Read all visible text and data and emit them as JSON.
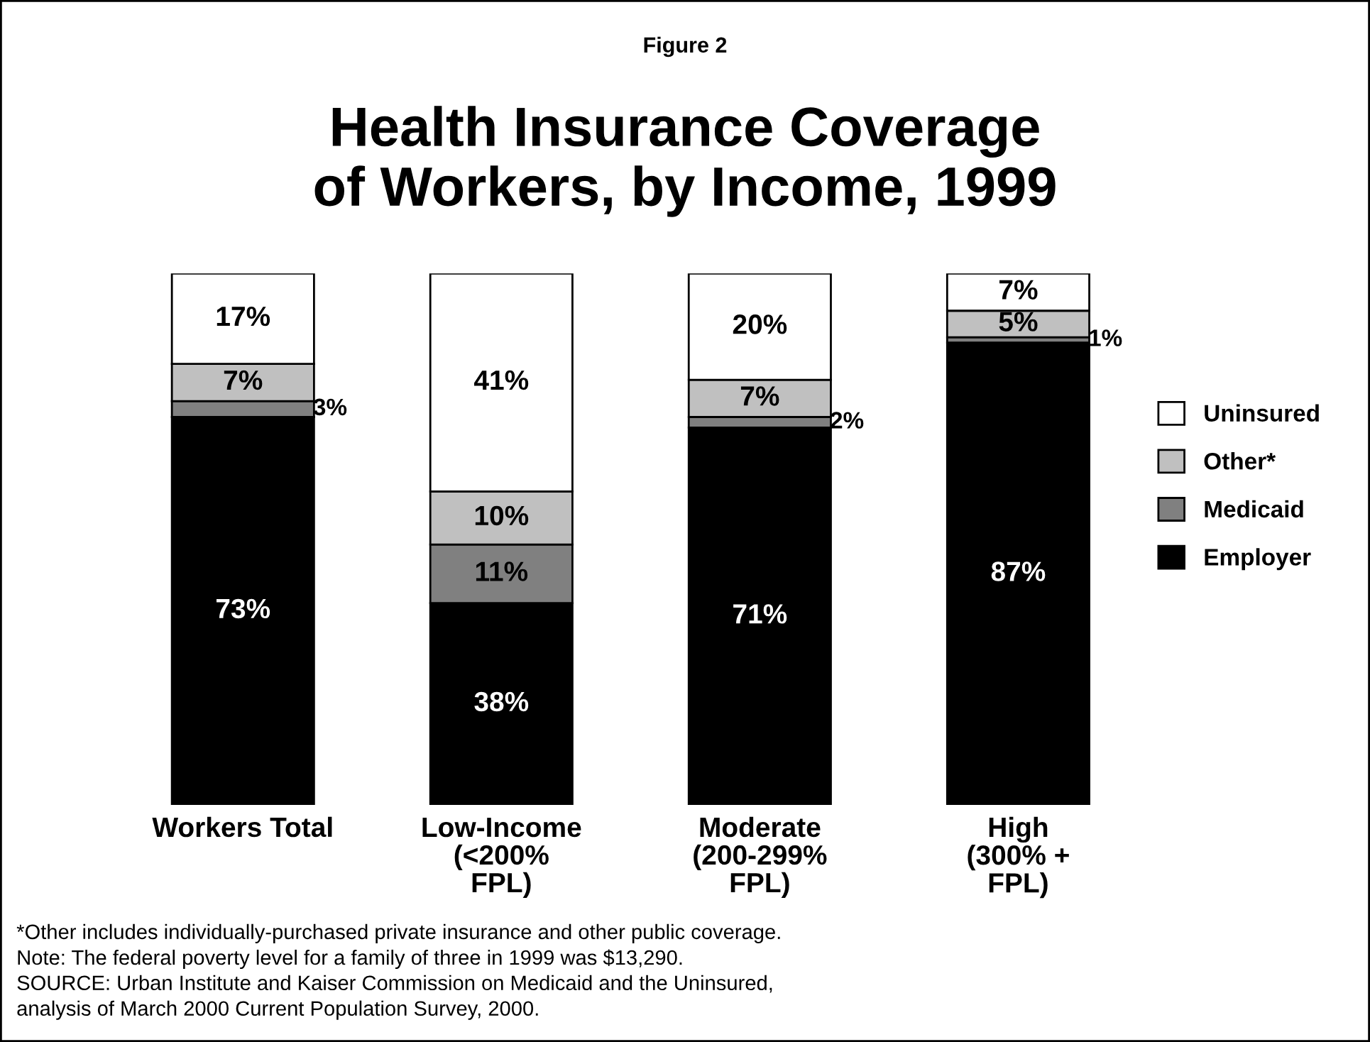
{
  "chart_data": {
    "type": "bar",
    "stacked": true,
    "subtitle": "Figure 2",
    "title": "Health Insurance Coverage\nof Workers, by Income, 1999",
    "categories": [
      "Workers Total",
      "Low-Income\n(<200%\nFPL)",
      "Moderate\n(200-299%\nFPL)",
      "High\n(300% +\nFPL)"
    ],
    "series": [
      {
        "name": "Employer",
        "color": "#000000",
        "values": [
          73,
          38,
          71,
          87
        ],
        "value_labels": [
          "73%",
          "38%",
          "71%",
          "87%"
        ]
      },
      {
        "name": "Medicaid",
        "color": "#808080",
        "values": [
          3,
          11,
          2,
          1
        ],
        "value_labels": [
          "3%",
          "11%",
          "2%",
          "1%"
        ]
      },
      {
        "name": "Other*",
        "color": "#c0c0c0",
        "values": [
          7,
          10,
          7,
          5
        ],
        "value_labels": [
          "7%",
          "10%",
          "7%",
          "5%"
        ]
      },
      {
        "name": "Uninsured",
        "color": "#ffffff",
        "values": [
          17,
          41,
          20,
          7
        ],
        "value_labels": [
          "17%",
          "41%",
          "20%",
          "7%"
        ]
      }
    ],
    "ylim": [
      0,
      100
    ],
    "tick_labels": "x",
    "grid": false,
    "legend": "right",
    "annotations": [
      "*Other includes individually-purchased private insurance and other public coverage.",
      "Note: The federal poverty level for a family of three in 1999 was $13,290.",
      "SOURCE: Urban Institute and Kaiser Commission on Medicaid and the Uninsured,",
      "analysis of March 2000 Current Population Survey, 2000."
    ]
  }
}
